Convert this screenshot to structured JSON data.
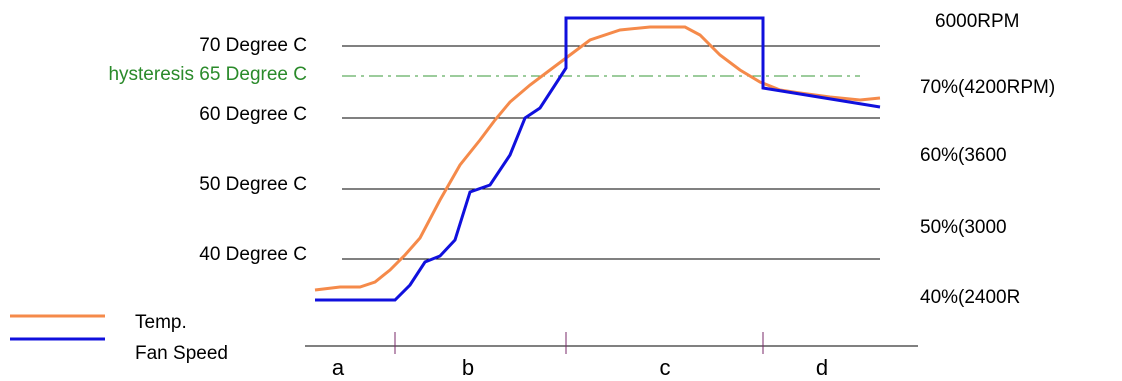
{
  "left_labels": [
    "70 Degree C",
    "hysteresis 65 Degree C",
    "60 Degree C",
    "50 Degree C",
    "40 Degree C"
  ],
  "right_labels": [
    "6000RPM",
    "70%(4200RPM)",
    "60%(3600",
    "50%(3000",
    "40%(2400R"
  ],
  "legend": [
    "Temp.",
    "Fan Speed"
  ],
  "phases": [
    "a",
    "b",
    "c",
    "d"
  ]
}
